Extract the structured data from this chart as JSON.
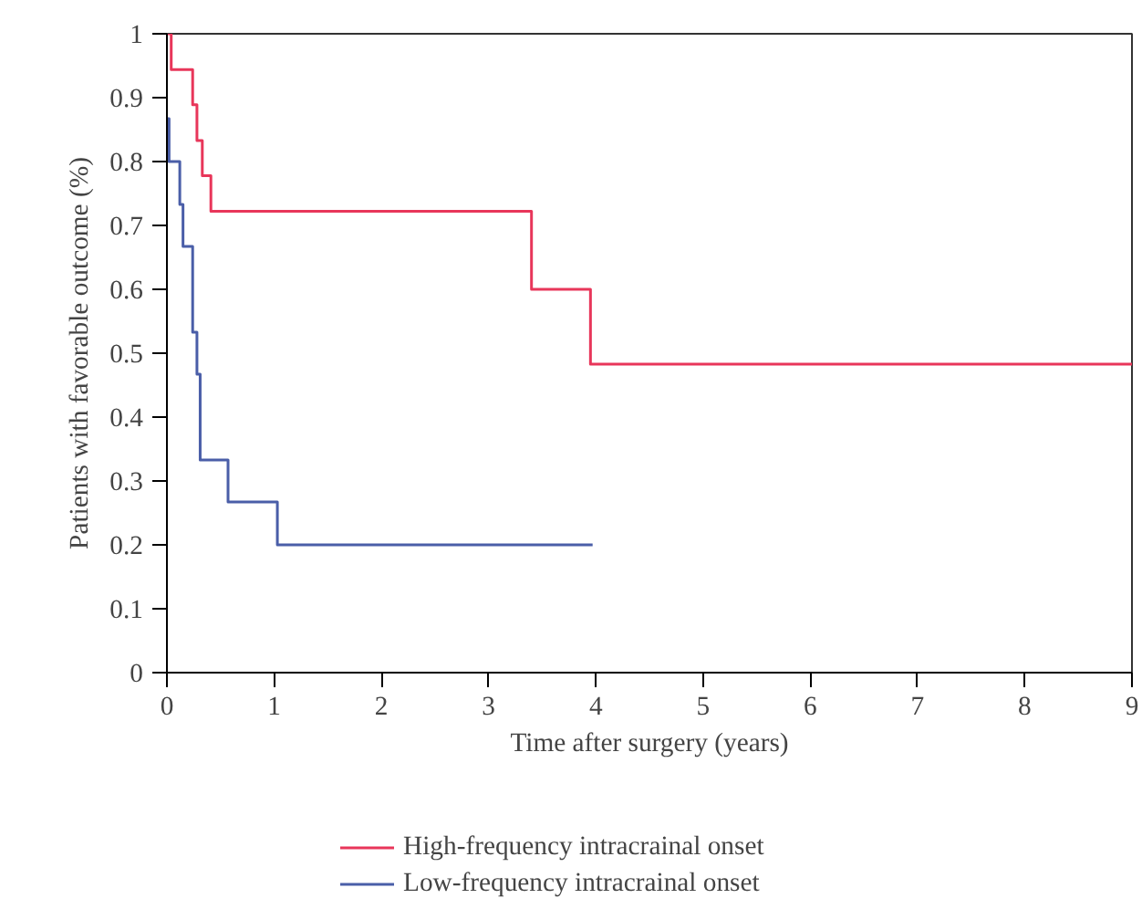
{
  "chart_data": {
    "type": "step",
    "xlabel": "Time after surgery (years)",
    "ylabel": "Patients with favorable outcome (%)",
    "xlim": [
      0,
      9
    ],
    "ylim": [
      0,
      1
    ],
    "xticks": [
      0,
      1,
      2,
      3,
      4,
      5,
      6,
      7,
      8,
      9
    ],
    "yticks": [
      0,
      0.1,
      0.2,
      0.3,
      0.4,
      0.5,
      0.6,
      0.7,
      0.8,
      0.9,
      1
    ],
    "grid": false,
    "legend": "bottom",
    "marker": "none",
    "line_style": "solid",
    "series": [
      {
        "name": "High-frequency intracrainal onset",
        "color": "#e8365a",
        "x": [
          0,
          0.04,
          0.24,
          0.28,
          0.33,
          0.41,
          3.4,
          3.95,
          9
        ],
        "values": [
          1,
          0.944,
          0.889,
          0.833,
          0.778,
          0.722,
          0.6,
          0.483,
          0.483
        ]
      },
      {
        "name": "Low-frequency intracrainal onset",
        "color": "#4a5ea8",
        "x": [
          0,
          0.02,
          0.12,
          0.15,
          0.24,
          0.28,
          0.31,
          0.57,
          1.03,
          3.97
        ],
        "values": [
          0.867,
          0.8,
          0.733,
          0.667,
          0.533,
          0.467,
          0.333,
          0.267,
          0.2,
          0.2
        ]
      }
    ]
  }
}
